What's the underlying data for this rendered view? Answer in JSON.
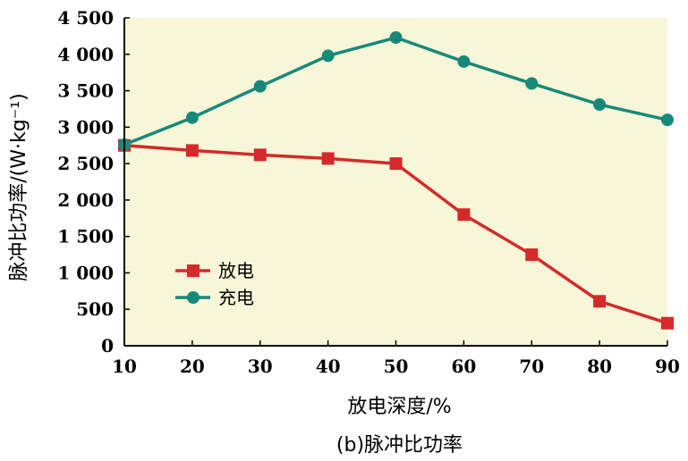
{
  "chart_data": {
    "type": "line",
    "x": [
      10,
      20,
      30,
      40,
      50,
      60,
      70,
      80,
      90
    ],
    "x_tick_labels": [
      "10",
      "20",
      "30",
      "40",
      "50",
      "60",
      "70",
      "80",
      "90"
    ],
    "y_tick_labels": [
      "0",
      "500",
      "1 000",
      "1 500",
      "2 000",
      "2 500",
      "3 000",
      "3 500",
      "4 000",
      "4 500"
    ],
    "y_ticks": [
      0,
      500,
      1000,
      1500,
      2000,
      2500,
      3000,
      3500,
      4000,
      4500
    ],
    "xlim": [
      10,
      90
    ],
    "ylim": [
      0,
      4500
    ],
    "xlabel": "放电深度/%",
    "ylabel": "脉冲比功率/(W·kg⁻¹)",
    "caption": "(b)脉冲比功率",
    "grid": false,
    "legend_position": "lower-left",
    "plot_background": "#f8f6d8",
    "series": [
      {
        "name": "放电",
        "color": "#d42a2a",
        "marker": "square",
        "values": [
          2750,
          2680,
          2620,
          2570,
          2500,
          1800,
          1250,
          610,
          310
        ]
      },
      {
        "name": "充电",
        "color": "#17897a",
        "marker": "circle",
        "values": [
          2760,
          3130,
          3560,
          3980,
          4230,
          3900,
          3600,
          3310,
          3100
        ]
      }
    ]
  }
}
